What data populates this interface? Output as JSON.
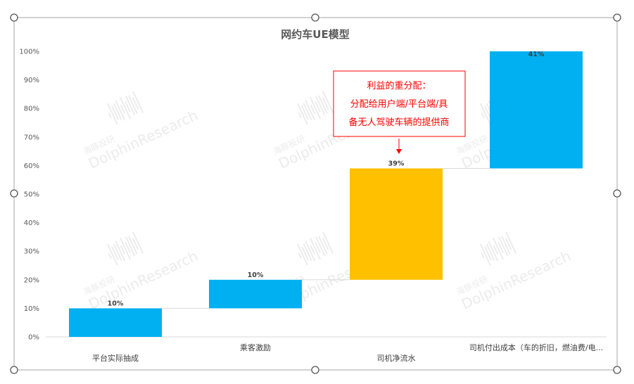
{
  "chart_data": {
    "type": "bar",
    "subtype": "waterfall",
    "title": "网约车UE模型",
    "categories": [
      "平台实际抽成",
      "乘客激励",
      "司机净流水",
      "司机付出成本（车的折旧，燃油费/电..."
    ],
    "values": [
      10,
      10,
      39,
      41
    ],
    "bases": [
      0,
      10,
      20,
      59
    ],
    "data_labels": [
      "10%",
      "10%",
      "39%",
      "41%"
    ],
    "colors": [
      "#00b0f0",
      "#00b0f0",
      "#ffc000",
      "#00b0f0"
    ],
    "yticks": [
      "0%",
      "10%",
      "20%",
      "30%",
      "40%",
      "50%",
      "60%",
      "70%",
      "80%",
      "90%",
      "100%"
    ],
    "ylim": [
      0,
      100
    ],
    "grid": false,
    "legend": "none",
    "annotation": {
      "lines": [
        "利益的重分配：",
        "分配给用户端/平台端/具",
        "备无人驾驶车辆的提供商"
      ],
      "color": "#ff0000"
    },
    "watermark": {
      "brand": "DolphinResearch",
      "cn": "海豚投研"
    }
  }
}
